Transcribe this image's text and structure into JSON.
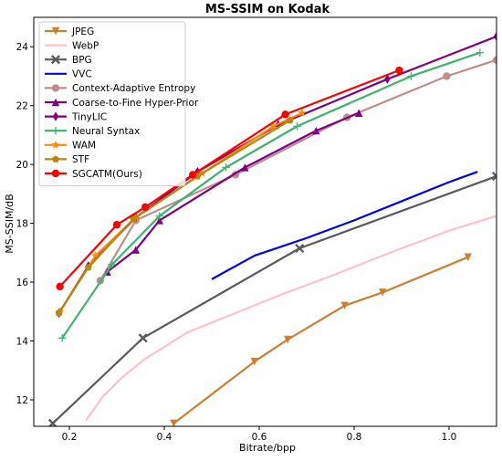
{
  "chart_data": {
    "type": "line",
    "title": "MS-SSIM on Kodak",
    "xlabel": "Bitrate/bpp",
    "ylabel": "MS-SSIM/dB",
    "xlim": [
      0.125,
      1.1
    ],
    "ylim": [
      11.1,
      25.0
    ],
    "xticks": [
      "0.2",
      "0.4",
      "0.6",
      "0.8",
      "1.0"
    ],
    "xtick_values": [
      0.2,
      0.4,
      0.6,
      0.8,
      1.0
    ],
    "yticks": [
      "12",
      "14",
      "16",
      "18",
      "20",
      "22",
      "24"
    ],
    "ytick_values": [
      12,
      14,
      16,
      18,
      20,
      22,
      24
    ],
    "grid": false,
    "legend_position": "top-left",
    "series": [
      {
        "name": "JPEG",
        "color": "#cd7f32",
        "marker": "triangle-down",
        "x": [
          0.42,
          0.59,
          0.66,
          0.78,
          0.86,
          1.04
        ],
        "y": [
          11.2,
          13.3,
          14.05,
          15.2,
          15.65,
          16.85
        ]
      },
      {
        "name": "WebP",
        "color": "#ffc0cb",
        "marker": "none",
        "x": [
          0.235,
          0.27,
          0.31,
          0.36,
          0.45,
          0.55,
          0.65,
          0.75,
          0.82,
          0.9,
          1.0,
          1.1
        ],
        "y": [
          11.3,
          12.1,
          12.75,
          13.4,
          14.3,
          14.95,
          15.6,
          16.2,
          16.65,
          17.15,
          17.75,
          18.25
        ]
      },
      {
        "name": "BPG",
        "color": "#5a5a5a",
        "marker": "x",
        "x": [
          0.165,
          0.355,
          0.685,
          1.1
        ],
        "y": [
          11.2,
          14.1,
          17.15,
          19.6
        ]
      },
      {
        "name": "VVC",
        "color": "#0000ee",
        "marker": "none",
        "x": [
          0.5,
          0.59,
          0.7,
          0.8,
          0.9,
          1.0,
          1.06
        ],
        "y": [
          16.1,
          16.9,
          17.5,
          18.1,
          18.75,
          19.4,
          19.75
        ]
      },
      {
        "name": "Context-Adaptive Entropy",
        "color": "#bc8f8f",
        "marker": "circle",
        "x": [
          0.265,
          0.34,
          0.55,
          0.785,
          0.995,
          1.1
        ],
        "y": [
          16.05,
          18.1,
          19.65,
          21.6,
          23.0,
          23.55
        ]
      },
      {
        "name": "Coarse-to-Fine Hyper-Prior",
        "color": "#800080",
        "marker": "triangle-up",
        "x": [
          0.28,
          0.34,
          0.39,
          0.57,
          0.72,
          0.81
        ],
        "y": [
          16.35,
          17.1,
          18.1,
          19.9,
          21.15,
          21.75
        ]
      },
      {
        "name": "TinyLIC",
        "color": "#800080",
        "marker": "diamond",
        "x": [
          0.178,
          0.24,
          0.34,
          0.47,
          0.64,
          0.87,
          1.1
        ],
        "y": [
          14.95,
          16.55,
          18.2,
          19.75,
          21.35,
          22.9,
          24.35
        ]
      },
      {
        "name": "Neural Syntax",
        "color": "#3cb371",
        "marker": "plus",
        "x": [
          0.185,
          0.29,
          0.39,
          0.53,
          0.68,
          0.92,
          1.065
        ],
        "y": [
          14.1,
          16.6,
          18.25,
          19.9,
          21.3,
          23.0,
          23.8
        ]
      },
      {
        "name": "WAM",
        "color": "#ff8c00",
        "marker": "star",
        "x": [
          0.18,
          0.255,
          0.34,
          0.48,
          0.63,
          0.69
        ],
        "y": [
          15.0,
          16.9,
          18.2,
          19.7,
          21.3,
          21.75
        ]
      },
      {
        "name": "STF",
        "color": "#b8860b",
        "marker": "pentagon",
        "x": [
          0.178,
          0.24,
          0.335,
          0.47,
          0.665
        ],
        "y": [
          14.95,
          16.5,
          18.15,
          19.6,
          21.5
        ]
      },
      {
        "name": "SGCATM(Ours)",
        "color": "#ff0000",
        "marker": "circle",
        "x": [
          0.18,
          0.3,
          0.36,
          0.46,
          0.655,
          0.895
        ],
        "y": [
          15.85,
          17.95,
          18.55,
          19.65,
          21.7,
          23.2
        ]
      }
    ]
  }
}
